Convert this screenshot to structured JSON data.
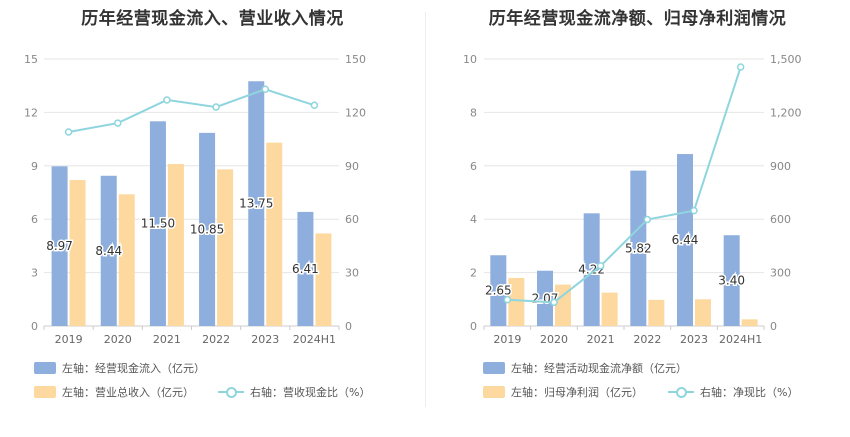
{
  "chart_data": [
    {
      "type": "bar",
      "title": "历年经营现金流入、营业收入情况",
      "categories": [
        "2019",
        "2020",
        "2021",
        "2022",
        "2023",
        "2024H1"
      ],
      "left_axis": {
        "ylim": [
          0,
          15
        ],
        "ticks": [
          "0",
          "3",
          "6",
          "9",
          "12",
          "15"
        ]
      },
      "right_axis": {
        "ylim": [
          0,
          150
        ],
        "ticks": [
          "0",
          "30",
          "60",
          "90",
          "120",
          "150"
        ]
      },
      "series": [
        {
          "name": "左轴：经营现金流入（亿元）",
          "axis": "left",
          "kind": "bar",
          "color": "#8eaedd",
          "values": [
            8.97,
            8.44,
            11.5,
            10.85,
            13.75,
            6.41
          ],
          "labels": [
            "8.97",
            "8.44",
            "11.50",
            "10.85",
            "13.75",
            "6.41"
          ]
        },
        {
          "name": "左轴：营业总收入（亿元）",
          "axis": "left",
          "kind": "bar",
          "color": "#fdd9a0",
          "values": [
            8.2,
            7.4,
            9.1,
            8.8,
            10.3,
            5.2
          ]
        },
        {
          "name": "右轴：营收现金比（%）",
          "axis": "right",
          "kind": "line",
          "color": "#8fd5de",
          "values": [
            109,
            114,
            127,
            123,
            133,
            124
          ]
        }
      ],
      "grid": true
    },
    {
      "type": "bar",
      "title": "历年经营现金流净额、归母净利润情况",
      "categories": [
        "2019",
        "2020",
        "2021",
        "2022",
        "2023",
        "2024H1"
      ],
      "left_axis": {
        "ylim": [
          0,
          10
        ],
        "ticks": [
          "0",
          "2",
          "4",
          "6",
          "8",
          "10"
        ]
      },
      "right_axis": {
        "ylim": [
          0,
          1500
        ],
        "ticks": [
          "0",
          "300",
          "600",
          "900",
          "1,200",
          "1,500"
        ]
      },
      "series": [
        {
          "name": "左轴：经营活动现金流净额（亿元）",
          "axis": "left",
          "kind": "bar",
          "color": "#8eaedd",
          "values": [
            2.65,
            2.07,
            4.22,
            5.82,
            6.44,
            3.4
          ],
          "labels": [
            "2.65",
            "2.07",
            "4.22",
            "5.82",
            "6.44",
            "3.40"
          ]
        },
        {
          "name": "左轴：归母净利润（亿元）",
          "axis": "left",
          "kind": "bar",
          "color": "#fdd9a0",
          "values": [
            1.8,
            1.55,
            1.25,
            0.98,
            1.0,
            0.25
          ]
        },
        {
          "name": "右轴：净现比（%）",
          "axis": "right",
          "kind": "line",
          "color": "#8fd5de",
          "values": [
            148,
            133,
            338,
            598,
            648,
            1455
          ]
        }
      ],
      "grid": true
    }
  ]
}
